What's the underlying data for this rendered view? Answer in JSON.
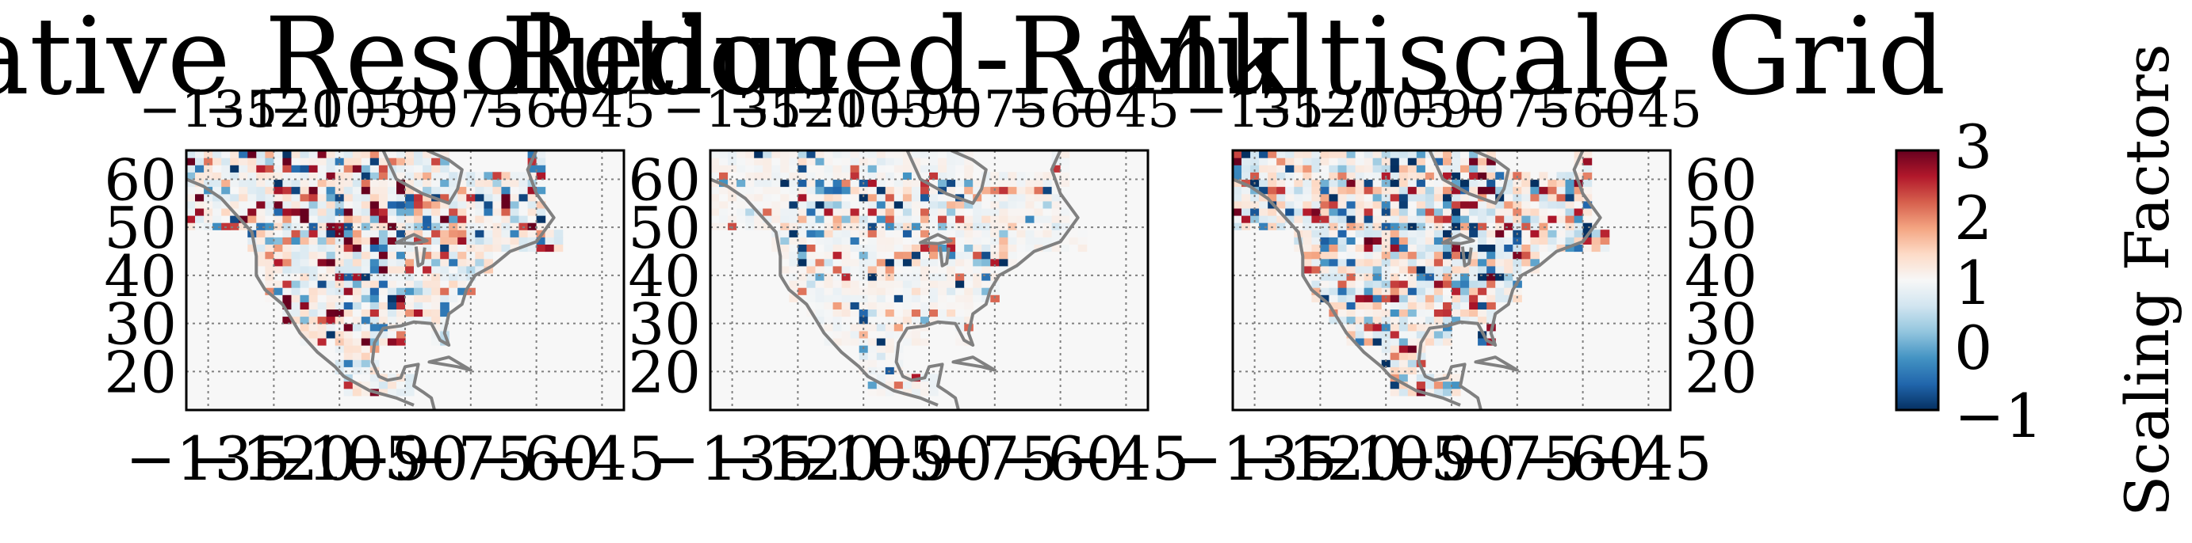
{
  "chart_data": [
    {
      "type": "heatmap",
      "title": "Native Resolution",
      "x_ticks": [
        "−135",
        "−120",
        "−105",
        "−90",
        "−75",
        "−60",
        "−45"
      ],
      "y_ticks": [
        "20",
        "30",
        "40",
        "50",
        "60"
      ],
      "xlim": [
        -140,
        -40
      ],
      "ylim": [
        12,
        66
      ],
      "grid": true,
      "map": "North America coastlines",
      "pattern": "native"
    },
    {
      "type": "heatmap",
      "title": "Reduced-Rank",
      "x_ticks": [
        "−135",
        "−120",
        "−105",
        "−90",
        "−75",
        "−60",
        "−45"
      ],
      "y_ticks": [
        "20",
        "30",
        "40",
        "50",
        "60"
      ],
      "xlim": [
        -140,
        -40
      ],
      "ylim": [
        12,
        66
      ],
      "grid": true,
      "map": "North America coastlines",
      "pattern": "reduced"
    },
    {
      "type": "heatmap",
      "title": "Multiscale Grid",
      "x_ticks": [
        "−135",
        "−120",
        "−105",
        "−90",
        "−75",
        "−60",
        "−45"
      ],
      "y_ticks": [
        "20",
        "30",
        "40",
        "50",
        "60"
      ],
      "xlim": [
        -140,
        -40
      ],
      "ylim": [
        12,
        66
      ],
      "grid": true,
      "map": "North America coastlines",
      "pattern": "multiscale"
    }
  ],
  "colorbar": {
    "label": "Scaling Factors",
    "ticks": [
      "−1",
      "0",
      "1",
      "2",
      "3"
    ],
    "range": [
      -1,
      3
    ],
    "colormap": "RdBu_r",
    "colors": [
      "#053061",
      "#2166ac",
      "#4393c3",
      "#92c5de",
      "#d1e5f0",
      "#f7f7f7",
      "#fddbc7",
      "#f4a582",
      "#d6604d",
      "#b2182b",
      "#67001f"
    ]
  },
  "colors": {
    "coastline": "#808080",
    "gridline": "#808080",
    "background": "#f7f7f7"
  }
}
